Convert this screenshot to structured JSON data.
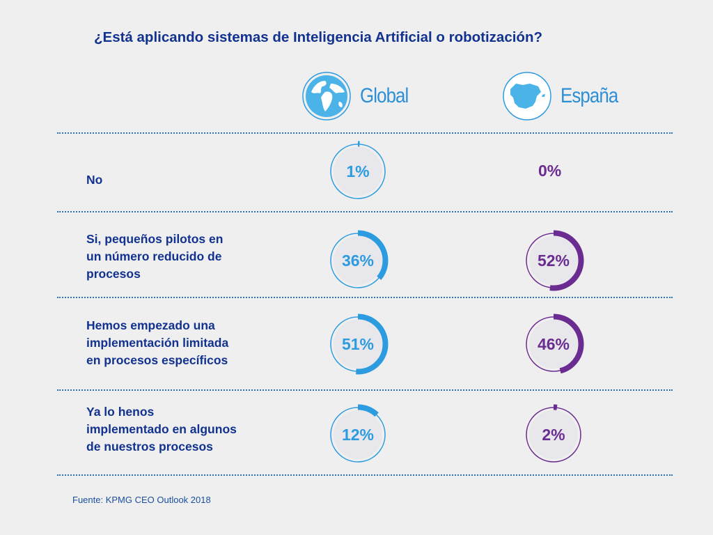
{
  "title": "¿Está aplicando sistemas de Inteligencia Artificial o robotización?",
  "source": "Fuente: KPMG CEO Outlook 2018",
  "colors": {
    "global": "#2d9be0",
    "spain": "#6b2c91",
    "title": "#12328f"
  },
  "regions": [
    {
      "label": "Global",
      "icon": "globe-icon"
    },
    {
      "label": "España",
      "icon": "spain-map-icon"
    }
  ],
  "rows": [
    {
      "label": [
        "No"
      ]
    },
    {
      "label": [
        "Si, pequeños pilotos en",
        "un número reducido de",
        "procesos"
      ]
    },
    {
      "label": [
        "Hemos empezado una",
        "implementación limitada",
        "en procesos específicos"
      ]
    },
    {
      "label": [
        "Ya lo henos",
        "implementado en algunos",
        "de nuestros procesos"
      ]
    }
  ],
  "chart_data": {
    "type": "donut",
    "title": "¿Está aplicando sistemas de Inteligencia Artificial o robotización?",
    "categories": [
      "No",
      "Si, pequeños pilotos en un número reducido de procesos",
      "Hemos empezado una implementación limitada en procesos específicos",
      "Ya lo henos implementado en algunos de nuestros procesos"
    ],
    "series": [
      {
        "name": "Global",
        "values": [
          1,
          36,
          51,
          12
        ],
        "labels": [
          "1%",
          "36%",
          "51%",
          "12%"
        ]
      },
      {
        "name": "España",
        "values": [
          0,
          52,
          46,
          2
        ],
        "labels": [
          "0%",
          "52%",
          "46%",
          "2%"
        ]
      }
    ]
  }
}
